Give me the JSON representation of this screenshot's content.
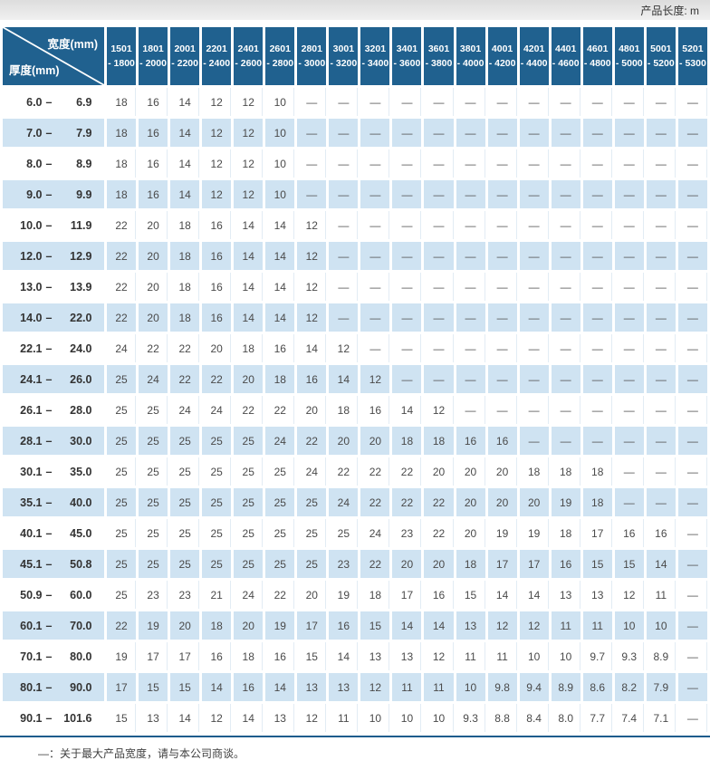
{
  "topbar": {
    "product_length_label": "产品长度: m"
  },
  "table": {
    "corner": {
      "width_label": "宽度(mm)",
      "thickness_label": "厚度(mm)"
    },
    "label_separator": "–",
    "columns": [
      [
        "1501",
        "- 1800"
      ],
      [
        "1801",
        "- 2000"
      ],
      [
        "2001",
        "- 2200"
      ],
      [
        "2201",
        "- 2400"
      ],
      [
        "2401",
        "- 2600"
      ],
      [
        "2601",
        "- 2800"
      ],
      [
        "2801",
        "- 3000"
      ],
      [
        "3001",
        "- 3200"
      ],
      [
        "3201",
        "- 3400"
      ],
      [
        "3401",
        "- 3600"
      ],
      [
        "3601",
        "- 3800"
      ],
      [
        "3801",
        "- 4000"
      ],
      [
        "4001",
        "- 4200"
      ],
      [
        "4201",
        "- 4400"
      ],
      [
        "4401",
        "- 4600"
      ],
      [
        "4601",
        "- 4800"
      ],
      [
        "4801",
        "- 5000"
      ],
      [
        "5001",
        "- 5200"
      ],
      [
        "5201",
        "- 5300"
      ]
    ],
    "rows": [
      {
        "from": "6.0",
        "to": "6.9",
        "values": [
          "18",
          "16",
          "14",
          "12",
          "12",
          "10",
          "—",
          "—",
          "—",
          "—",
          "—",
          "—",
          "—",
          "—",
          "—",
          "—",
          "—",
          "—",
          "—"
        ]
      },
      {
        "from": "7.0",
        "to": "7.9",
        "values": [
          "18",
          "16",
          "14",
          "12",
          "12",
          "10",
          "—",
          "—",
          "—",
          "—",
          "—",
          "—",
          "—",
          "—",
          "—",
          "—",
          "—",
          "—",
          "—"
        ]
      },
      {
        "from": "8.0",
        "to": "8.9",
        "values": [
          "18",
          "16",
          "14",
          "12",
          "12",
          "10",
          "—",
          "—",
          "—",
          "—",
          "—",
          "—",
          "—",
          "—",
          "—",
          "—",
          "—",
          "—",
          "—"
        ]
      },
      {
        "from": "9.0",
        "to": "9.9",
        "values": [
          "18",
          "16",
          "14",
          "12",
          "12",
          "10",
          "—",
          "—",
          "—",
          "—",
          "—",
          "—",
          "—",
          "—",
          "—",
          "—",
          "—",
          "—",
          "—"
        ]
      },
      {
        "from": "10.0",
        "to": "11.9",
        "values": [
          "22",
          "20",
          "18",
          "16",
          "14",
          "14",
          "12",
          "—",
          "—",
          "—",
          "—",
          "—",
          "—",
          "—",
          "—",
          "—",
          "—",
          "—",
          "—"
        ]
      },
      {
        "from": "12.0",
        "to": "12.9",
        "values": [
          "22",
          "20",
          "18",
          "16",
          "14",
          "14",
          "12",
          "—",
          "—",
          "—",
          "—",
          "—",
          "—",
          "—",
          "—",
          "—",
          "—",
          "—",
          "—"
        ]
      },
      {
        "from": "13.0",
        "to": "13.9",
        "values": [
          "22",
          "20",
          "18",
          "16",
          "14",
          "14",
          "12",
          "—",
          "—",
          "—",
          "—",
          "—",
          "—",
          "—",
          "—",
          "—",
          "—",
          "—",
          "—"
        ]
      },
      {
        "from": "14.0",
        "to": "22.0",
        "values": [
          "22",
          "20",
          "18",
          "16",
          "14",
          "14",
          "12",
          "—",
          "—",
          "—",
          "—",
          "—",
          "—",
          "—",
          "—",
          "—",
          "—",
          "—",
          "—"
        ]
      },
      {
        "from": "22.1",
        "to": "24.0",
        "values": [
          "24",
          "22",
          "22",
          "20",
          "18",
          "16",
          "14",
          "12",
          "—",
          "—",
          "—",
          "—",
          "—",
          "—",
          "—",
          "—",
          "—",
          "—",
          "—"
        ]
      },
      {
        "from": "24.1",
        "to": "26.0",
        "values": [
          "25",
          "24",
          "22",
          "22",
          "20",
          "18",
          "16",
          "14",
          "12",
          "—",
          "—",
          "—",
          "—",
          "—",
          "—",
          "—",
          "—",
          "—",
          "—"
        ]
      },
      {
        "from": "26.1",
        "to": "28.0",
        "values": [
          "25",
          "25",
          "24",
          "24",
          "22",
          "22",
          "20",
          "18",
          "16",
          "14",
          "12",
          "—",
          "—",
          "—",
          "—",
          "—",
          "—",
          "—",
          "—"
        ]
      },
      {
        "from": "28.1",
        "to": "30.0",
        "values": [
          "25",
          "25",
          "25",
          "25",
          "25",
          "24",
          "22",
          "20",
          "20",
          "18",
          "18",
          "16",
          "16",
          "—",
          "—",
          "—",
          "—",
          "—",
          "—"
        ]
      },
      {
        "from": "30.1",
        "to": "35.0",
        "values": [
          "25",
          "25",
          "25",
          "25",
          "25",
          "25",
          "24",
          "22",
          "22",
          "22",
          "20",
          "20",
          "20",
          "18",
          "18",
          "18",
          "—",
          "—",
          "—"
        ]
      },
      {
        "from": "35.1",
        "to": "40.0",
        "values": [
          "25",
          "25",
          "25",
          "25",
          "25",
          "25",
          "25",
          "24",
          "22",
          "22",
          "22",
          "20",
          "20",
          "20",
          "19",
          "18",
          "—",
          "—",
          "—"
        ]
      },
      {
        "from": "40.1",
        "to": "45.0",
        "values": [
          "25",
          "25",
          "25",
          "25",
          "25",
          "25",
          "25",
          "25",
          "24",
          "23",
          "22",
          "20",
          "19",
          "19",
          "18",
          "17",
          "16",
          "16",
          "—"
        ]
      },
      {
        "from": "45.1",
        "to": "50.8",
        "values": [
          "25",
          "25",
          "25",
          "25",
          "25",
          "25",
          "25",
          "23",
          "22",
          "20",
          "20",
          "18",
          "17",
          "17",
          "16",
          "15",
          "15",
          "14",
          "—"
        ]
      },
      {
        "from": "50.9",
        "to": "60.0",
        "values": [
          "25",
          "23",
          "23",
          "21",
          "24",
          "22",
          "20",
          "19",
          "18",
          "17",
          "16",
          "15",
          "14",
          "14",
          "13",
          "13",
          "12",
          "11",
          "—"
        ]
      },
      {
        "from": "60.1",
        "to": "70.0",
        "values": [
          "22",
          "19",
          "20",
          "18",
          "20",
          "19",
          "17",
          "16",
          "15",
          "14",
          "14",
          "13",
          "12",
          "12",
          "11",
          "11",
          "10",
          "10",
          "—"
        ]
      },
      {
        "from": "70.1",
        "to": "80.0",
        "values": [
          "19",
          "17",
          "17",
          "16",
          "18",
          "16",
          "15",
          "14",
          "13",
          "13",
          "12",
          "11",
          "11",
          "10",
          "10",
          "9.7",
          "9.3",
          "8.9",
          "—"
        ]
      },
      {
        "from": "80.1",
        "to": "90.0",
        "values": [
          "17",
          "15",
          "15",
          "14",
          "16",
          "14",
          "13",
          "13",
          "12",
          "11",
          "11",
          "10",
          "9.8",
          "9.4",
          "8.9",
          "8.6",
          "8.2",
          "7.9",
          "—"
        ]
      },
      {
        "from": "90.1",
        "to": "101.6",
        "values": [
          "15",
          "13",
          "14",
          "12",
          "14",
          "13",
          "12",
          "11",
          "10",
          "10",
          "10",
          "9.3",
          "8.8",
          "8.4",
          "8.0",
          "7.7",
          "7.4",
          "7.1",
          "—"
        ]
      }
    ]
  },
  "footnote": "—：关于最大产品宽度，请与本公司商谈。",
  "colors": {
    "header_blue": "#20618f",
    "row_alt_blue": "#cfe3f2",
    "border_blue": "#1d5c8c",
    "value_text": "#4a4a4a",
    "label_text": "#333333"
  }
}
